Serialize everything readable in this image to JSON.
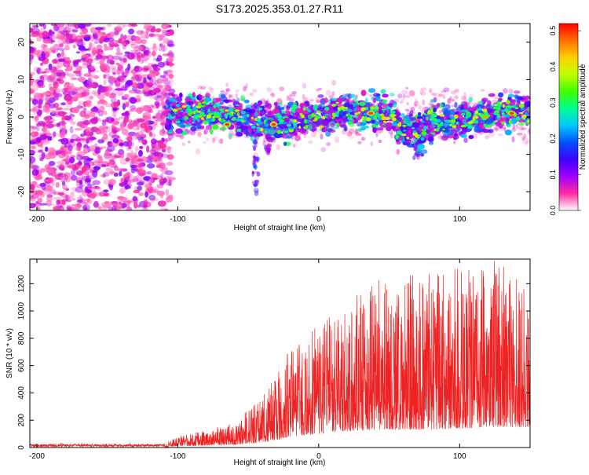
{
  "title": "S173.2025.353.01.27.R11",
  "colorbar": {
    "label": "Normalized spectral amplitude",
    "ticks": [
      "0.0",
      "0.1",
      "0.2",
      "0.3",
      "0.4",
      "0.5"
    ],
    "range": [
      0,
      0.52
    ],
    "colors": [
      "#ffffff",
      "#ff2aa0",
      "#a000ff",
      "#4000ff",
      "#0050ff",
      "#00c8ff",
      "#00ff90",
      "#40ff00",
      "#c0ff00",
      "#ffd000",
      "#ff7000",
      "#ff0000"
    ]
  },
  "chart_data": [
    {
      "type": "heatmap",
      "name": "spectrogram",
      "xlabel": "Height of straight line (km)",
      "ylabel": "Frequency (Hz)",
      "xlim": [
        -205,
        150
      ],
      "ylim": [
        -25,
        25
      ],
      "xticks": [
        -200,
        -100,
        0,
        100
      ],
      "yticks": [
        -20,
        -10,
        0,
        10,
        20
      ],
      "noise_region_x": [
        -205,
        -108
      ],
      "signal_band": {
        "x_start": -108,
        "x_end": 150,
        "center_hz": 0,
        "half_width_hz": 5
      },
      "hotspots": [
        {
          "x": -65,
          "y": -2,
          "amp": 0.5
        },
        {
          "x": -32,
          "y": -2,
          "amp": 0.5
        },
        {
          "x": 37,
          "y": 1,
          "amp": 0.5
        },
        {
          "x": 118,
          "y": 0,
          "amp": 0.45
        },
        {
          "x": 137,
          "y": 1,
          "amp": 0.5
        }
      ]
    },
    {
      "type": "line",
      "name": "snr",
      "xlabel": "Height of straight line (km)",
      "ylabel": "SNR (10 * v/v)",
      "xlim": [
        -205,
        150
      ],
      "ylim": [
        0,
        1380
      ],
      "xticks": [
        -200,
        -100,
        0,
        100
      ],
      "yticks": [
        0,
        200,
        400,
        600,
        800,
        1000,
        1200
      ],
      "color": "#ee2222",
      "profile": [
        {
          "x": -205,
          "lo": 0,
          "hi": 30
        },
        {
          "x": -110,
          "lo": 0,
          "hi": 30
        },
        {
          "x": -100,
          "lo": 10,
          "hi": 80
        },
        {
          "x": -60,
          "lo": 20,
          "hi": 180
        },
        {
          "x": -48,
          "lo": 30,
          "hi": 300
        },
        {
          "x": -32,
          "lo": 50,
          "hi": 500
        },
        {
          "x": -20,
          "lo": 80,
          "hi": 760
        },
        {
          "x": 0,
          "lo": 100,
          "hi": 900
        },
        {
          "x": 20,
          "lo": 120,
          "hi": 1050
        },
        {
          "x": 40,
          "lo": 130,
          "hi": 1250
        },
        {
          "x": 80,
          "lo": 130,
          "hi": 1280
        },
        {
          "x": 128,
          "lo": 150,
          "hi": 1380
        },
        {
          "x": 150,
          "lo": 150,
          "hi": 1150
        }
      ]
    }
  ]
}
